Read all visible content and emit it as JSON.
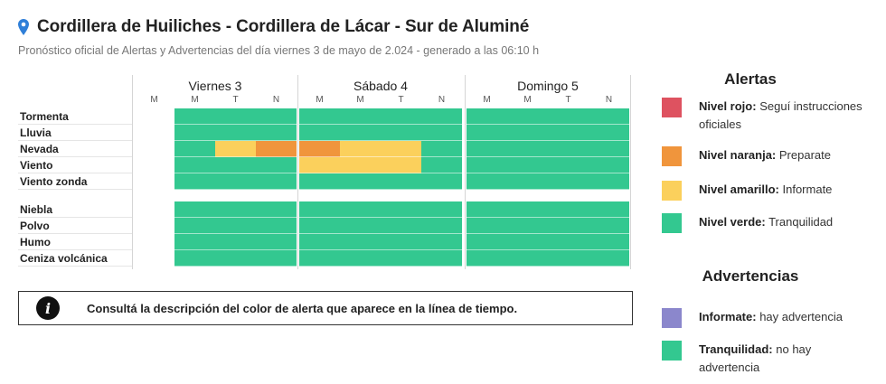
{
  "header": {
    "title": "Cordillera de Huiliches - Cordillera de Lácar - Sur de Aluminé",
    "subtitle": "Pronóstico oficial de Alertas y Advertencias del día viernes 3 de mayo de 2.024 - generado a las 06:10 h",
    "pin_color": "#2f7fd8"
  },
  "colors": {
    "rojo": "#de5260",
    "naranja": "#f0953c",
    "amarillo": "#fbd05c",
    "verde": "#33c890",
    "violeta": "#8b87cc"
  },
  "timeline": {
    "days": [
      "Viernes 3",
      "Sábado 4",
      "Domingo 5"
    ],
    "periods": [
      "M",
      "M",
      "T",
      "N"
    ],
    "alert_rows": [
      {
        "label": "Tormenta",
        "cells": [
          null,
          "verde",
          "verde",
          "verde",
          "verde",
          "verde",
          "verde",
          "verde",
          "verde",
          "verde",
          "verde",
          "verde"
        ]
      },
      {
        "label": "Lluvia",
        "cells": [
          null,
          "verde",
          "verde",
          "verde",
          "verde",
          "verde",
          "verde",
          "verde",
          "verde",
          "verde",
          "verde",
          "verde"
        ]
      },
      {
        "label": "Nevada",
        "cells": [
          null,
          "verde",
          "amarillo",
          "naranja",
          "naranja",
          "amarillo",
          "amarillo",
          "verde",
          "verde",
          "verde",
          "verde",
          "verde"
        ]
      },
      {
        "label": "Viento",
        "cells": [
          null,
          "verde",
          "verde",
          "verde",
          "amarillo",
          "amarillo",
          "amarillo",
          "verde",
          "verde",
          "verde",
          "verde",
          "verde"
        ]
      },
      {
        "label": "Viento zonda",
        "cells": [
          null,
          "verde",
          "verde",
          "verde",
          "verde",
          "verde",
          "verde",
          "verde",
          "verde",
          "verde",
          "verde",
          "verde"
        ]
      }
    ],
    "advertencia_rows": [
      {
        "label": "Niebla",
        "cells": [
          null,
          "verde",
          "verde",
          "verde",
          "verde",
          "verde",
          "verde",
          "verde",
          "verde",
          "verde",
          "verde",
          "verde"
        ]
      },
      {
        "label": "Polvo",
        "cells": [
          null,
          "verde",
          "verde",
          "verde",
          "verde",
          "verde",
          "verde",
          "verde",
          "verde",
          "verde",
          "verde",
          "verde"
        ]
      },
      {
        "label": "Humo",
        "cells": [
          null,
          "verde",
          "verde",
          "verde",
          "verde",
          "verde",
          "verde",
          "verde",
          "verde",
          "verde",
          "verde",
          "verde"
        ]
      },
      {
        "label": "Ceniza volcánica",
        "cells": [
          null,
          "verde",
          "verde",
          "verde",
          "verde",
          "verde",
          "verde",
          "verde",
          "verde",
          "verde",
          "verde",
          "verde"
        ]
      }
    ]
  },
  "info": {
    "text": "Consultá la descripción del color de alerta que aparece en la línea de tiempo."
  },
  "legend": {
    "alertas_title": "Alertas",
    "alertas": [
      {
        "level": "Nivel rojo:",
        "desc": "Seguí instrucciones oficiales",
        "color": "rojo"
      },
      {
        "level": "Nivel naranja:",
        "desc": "Preparate",
        "color": "naranja"
      },
      {
        "level": "Nivel amarillo:",
        "desc": "Informate",
        "color": "amarillo"
      },
      {
        "level": "Nivel verde:",
        "desc": "Tranquilidad",
        "color": "verde"
      }
    ],
    "advertencias_title": "Advertencias",
    "advertencias": [
      {
        "level": "Informate:",
        "desc": "hay advertencia",
        "color": "violeta"
      },
      {
        "level": "Tranquilidad:",
        "desc": "no hay advertencia",
        "color": "verde"
      }
    ]
  }
}
